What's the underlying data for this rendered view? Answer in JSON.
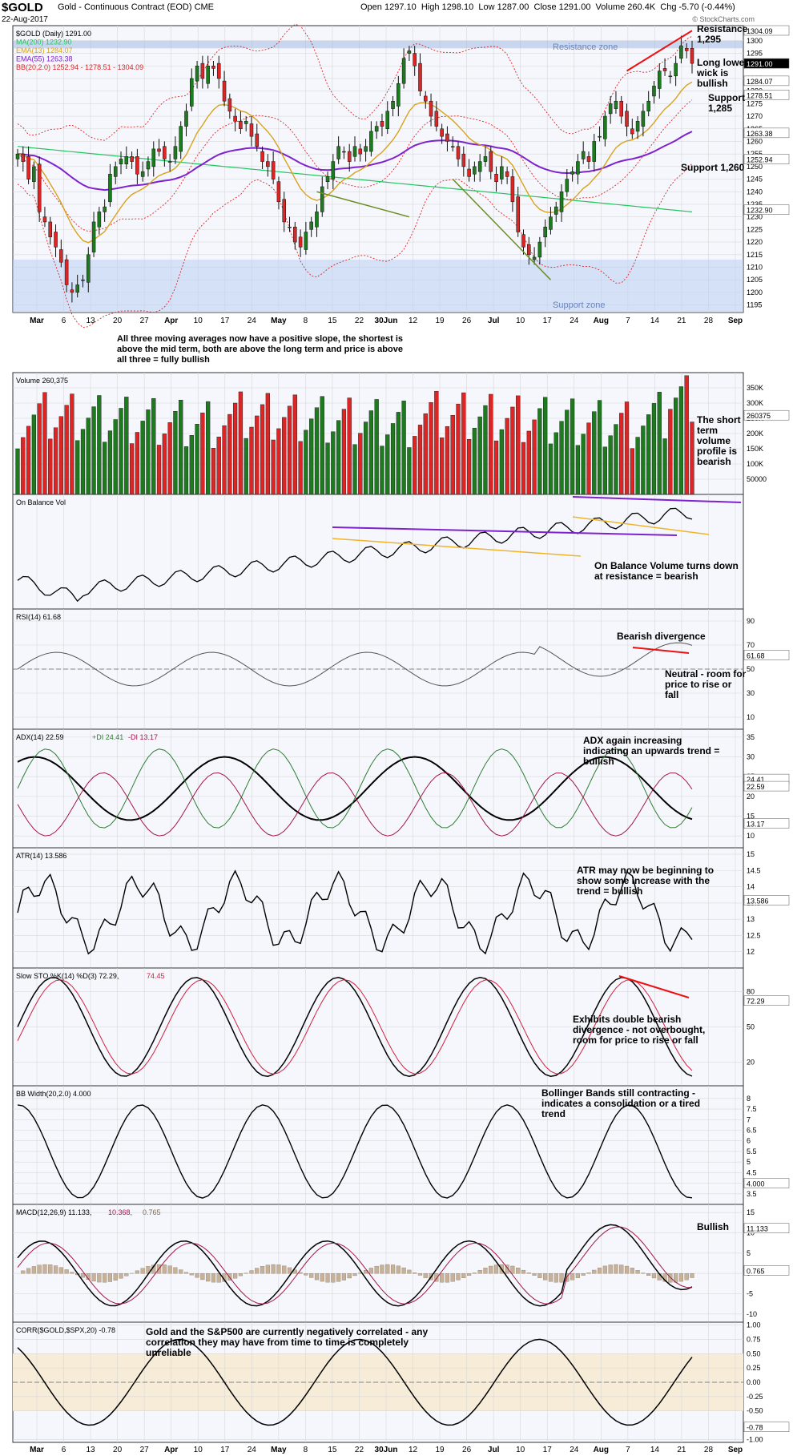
{
  "header": {
    "symbol": "$GOLD",
    "name": "Gold - Continuous Contract (EOD)  CME",
    "date": "22-Aug-2017",
    "ohlc": "Open 1297.10  High 1298.10  Low 1287.00  Close 1291.00  Volume 260.4K  Chg -5.70 (-0.44%)",
    "credit": "© StockCharts.com"
  },
  "x_axis_labels": [
    "Mar",
    "6",
    "13",
    "20",
    "27",
    "Apr",
    "10",
    "17",
    "24",
    "May",
    "8",
    "15",
    "22",
    "30Jun",
    "12",
    "19",
    "26",
    "Jul",
    "10",
    "17",
    "24",
    "Aug",
    "7",
    "14",
    "21",
    "28",
    "Sep"
  ],
  "colors": {
    "up": "#1e7a1e",
    "down": "#dc2626",
    "ma200": "#22c55e",
    "ema13": "#d9a21b",
    "ema55": "#7e22ce",
    "bb": "#dc2626",
    "grid": "#d8d8d8",
    "panel_bg": "#f5f7fc"
  },
  "chart_data": [
    {
      "type": "candlestick",
      "panel": "price",
      "legend": [
        "$GOLD (Daily) 1291.00",
        "MA(200) 1232.90",
        "EMA(13) 1284.07",
        "EMA(55) 1263.38",
        "BB(20,2.0) 1252.94 - 1278.51 - 1304.09"
      ],
      "ylim": [
        1192,
        1306
      ],
      "ticks": [
        1195,
        1200,
        1205,
        1210,
        1215,
        1220,
        1225,
        1230,
        1235,
        1240,
        1245,
        1250,
        1255,
        1260,
        1265,
        1270,
        1275,
        1280,
        1285,
        1290,
        1295,
        1300
      ],
      "last_values": [
        "1304.09",
        "1291.00",
        "1284.07",
        "1278.51",
        "1263.38",
        "1252.94",
        "1232.90"
      ],
      "close": [
        1255,
        1252,
        1245,
        1250,
        1232,
        1228,
        1222,
        1218,
        1212,
        1203,
        1200,
        1203,
        1205,
        1215,
        1228,
        1232,
        1234,
        1247,
        1250,
        1253,
        1254,
        1252,
        1247,
        1248,
        1252,
        1257,
        1256,
        1253,
        1252,
        1258,
        1266,
        1272,
        1285,
        1290,
        1285,
        1290,
        1289,
        1285,
        1276,
        1272,
        1268,
        1265,
        1268,
        1262,
        1258,
        1252,
        1250,
        1245,
        1236,
        1228,
        1226,
        1220,
        1218,
        1224,
        1228,
        1232,
        1242,
        1246,
        1252,
        1258,
        1256,
        1252,
        1258,
        1255,
        1258,
        1264,
        1266,
        1266,
        1272,
        1276,
        1283,
        1293,
        1296,
        1290,
        1280,
        1276,
        1270,
        1266,
        1262,
        1260,
        1258,
        1253,
        1250,
        1246,
        1250,
        1252,
        1254,
        1248,
        1244,
        1250,
        1246,
        1236,
        1224,
        1218,
        1215,
        1214,
        1220,
        1226,
        1230,
        1234,
        1240,
        1245,
        1248,
        1252,
        1256,
        1252,
        1260,
        1262,
        1270,
        1275,
        1276,
        1270,
        1266,
        1263,
        1268,
        1272,
        1276,
        1282,
        1288,
        1288,
        1286,
        1291,
        1298,
        1296,
        1291
      ],
      "bollinger": {
        "upper": 1304.09,
        "mid": 1278.51,
        "lower": 1252.94
      },
      "annotations": [
        "Resistance zone",
        "Support zone",
        "Resistance 1,295",
        "Long lower wick is bullish",
        "Support 1,285",
        "Support 1,260",
        "All three moving averages now have a positive slope, the shortest is above the mid term, both are above the long term and price is above all three = fully bullish"
      ]
    },
    {
      "type": "bar",
      "panel": "volume",
      "legend": "Volume 260,375",
      "ylim": [
        0,
        400
      ],
      "ticks": [
        "350K",
        "300K",
        "250K",
        "200K",
        "150K",
        "100K",
        "50000"
      ],
      "last_value": "260375",
      "annotation": "The short term volume profile is bearish"
    },
    {
      "type": "line",
      "panel": "obv",
      "legend": "On Balance Vol",
      "annotation": "On Balance Volume turns down at resistance = bearish"
    },
    {
      "type": "line",
      "panel": "rsi",
      "legend": "RSI(14) 61.68",
      "ylim": [
        0,
        100
      ],
      "ticks": [
        10,
        30,
        50,
        70,
        90
      ],
      "last_value": "61.68",
      "annotations": [
        "Bearish divergence",
        "Neutral - room for price to rise or fall"
      ]
    },
    {
      "type": "line",
      "panel": "adx",
      "legend": [
        "ADX(14) 22.59",
        "+DI 24.41",
        "-DI 13.17"
      ],
      "ylim": [
        7,
        37
      ],
      "ticks": [
        10,
        15,
        20,
        25,
        30,
        35
      ],
      "last_values": [
        "24.41",
        "22.59",
        "13.17"
      ],
      "annotation": "ADX again increasing indicating an upwards trend = bullish"
    },
    {
      "type": "line",
      "panel": "atr",
      "legend": "ATR(14) 13.586",
      "ylim": [
        11.5,
        15.2
      ],
      "ticks": [
        12.0,
        12.5,
        13.0,
        13.5,
        14.0,
        14.5,
        15.0
      ],
      "last_value": "13.586",
      "annotation": "ATR may now be beginning to show some increase with the trend = bullish"
    },
    {
      "type": "line",
      "panel": "sto",
      "legend": [
        "Slow STO %K(14) %D(3) 72.29,",
        "74.45"
      ],
      "ylim": [
        0,
        100
      ],
      "ticks": [
        20,
        50,
        80
      ],
      "last_value": "72.29",
      "annotation": "Exhibits double bearish divergence - not overbought, room for price to rise or fall"
    },
    {
      "type": "line",
      "panel": "bbwidth",
      "legend": "BB Width(20,2.0) 4.000",
      "ylim": [
        3.0,
        8.6
      ],
      "ticks": [
        3.5,
        4.0,
        4.5,
        5.0,
        5.5,
        6.0,
        6.5,
        7.0,
        7.5,
        8.0
      ],
      "last_value": "4.000",
      "annotation": "Bollinger Bands still contracting - indicates a consolidation or a tired trend"
    },
    {
      "type": "bar",
      "panel": "macd",
      "legend": [
        "MACD(12,26,9) 11.133,",
        "10.368,",
        "0.765"
      ],
      "ylim": [
        -12,
        17
      ],
      "ticks": [
        -10,
        -5,
        0,
        5,
        10,
        15
      ],
      "last_values": [
        "11.133",
        "0.765"
      ],
      "annotation": "Bullish"
    },
    {
      "type": "line",
      "panel": "corr",
      "legend": "CORR($GOLD,$SPX,20) -0.78",
      "ylim": [
        -1.05,
        1.05
      ],
      "ticks": [
        "1.00",
        "0.75",
        "0.50",
        "0.25",
        "0.00",
        "-0.25",
        "-0.50",
        "-1.00"
      ],
      "last_value": "-0.78",
      "annotation": "Gold and the S&P500 are currently negatively correlated - any correlation they may have from time to time is completely unreliable"
    }
  ]
}
